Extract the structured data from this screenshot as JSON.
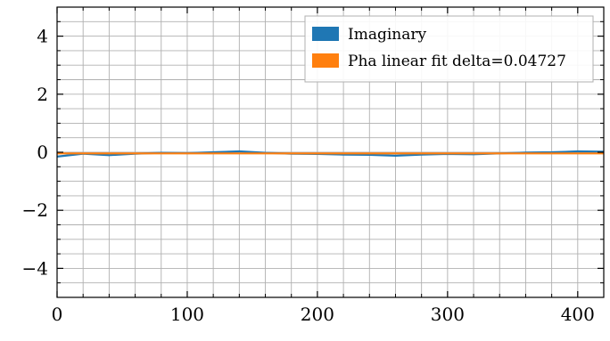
{
  "chart_data": {
    "type": "line",
    "title": "",
    "xlabel": "",
    "ylabel": "",
    "xlim": [
      0,
      420
    ],
    "ylim": [
      -5,
      5
    ],
    "x_ticks": [
      0,
      100,
      200,
      300,
      400
    ],
    "y_ticks": [
      4,
      2,
      0,
      -2,
      -4
    ],
    "x_tick_labels": [
      "0",
      "100",
      "200",
      "300",
      "400"
    ],
    "y_tick_labels": [
      "4",
      "2",
      "0",
      "−2",
      "−4"
    ],
    "grid": true,
    "legend_position": "top-right",
    "series": [
      {
        "name": "Imaginary",
        "color": "#1f77b4",
        "x": [
          0,
          20,
          40,
          60,
          80,
          100,
          120,
          140,
          160,
          180,
          200,
          220,
          240,
          260,
          280,
          300,
          320,
          340,
          360,
          380,
          400,
          420
        ],
        "y": [
          -0.15,
          -0.05,
          -0.1,
          -0.05,
          -0.02,
          -0.03,
          0.0,
          0.03,
          -0.02,
          -0.05,
          -0.06,
          -0.08,
          -0.09,
          -0.12,
          -0.08,
          -0.06,
          -0.07,
          -0.04,
          -0.01,
          0.0,
          0.03,
          0.02
        ]
      },
      {
        "name": "Pha linear fit delta=0.04727",
        "color": "#ff7f0e",
        "x": [
          0,
          420
        ],
        "y": [
          -0.04,
          -0.04
        ]
      }
    ]
  }
}
